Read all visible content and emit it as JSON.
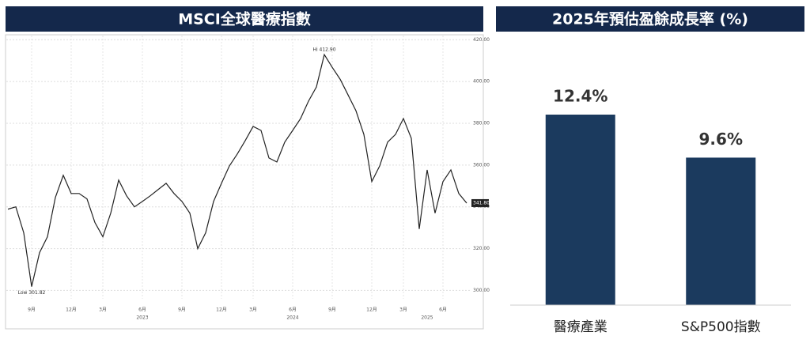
{
  "chart_data": [
    {
      "type": "line",
      "title": "MSCI全球醫療指數",
      "color": "#222222",
      "categories": [
        null,
        null,
        null,
        "9月",
        null,
        null,
        null,
        null,
        "12月",
        null,
        null,
        null,
        "3月",
        null,
        null,
        null,
        null,
        "6月",
        null,
        null,
        null,
        null,
        "9月",
        null,
        null,
        null,
        null,
        "12月",
        null,
        null,
        null,
        "3月",
        null,
        null,
        null,
        null,
        "6月",
        null,
        null,
        null,
        null,
        "9月",
        null,
        null,
        null,
        null,
        "12月",
        null,
        null,
        null,
        "3月",
        null,
        null,
        null,
        null,
        "6月",
        null,
        null,
        null
      ],
      "year_labels": [
        null,
        null,
        null,
        null,
        null,
        null,
        null,
        null,
        null,
        null,
        null,
        null,
        null,
        null,
        null,
        null,
        null,
        "2023",
        null,
        null,
        null,
        null,
        null,
        null,
        null,
        null,
        null,
        null,
        null,
        null,
        null,
        null,
        null,
        null,
        null,
        null,
        "2024",
        null,
        null,
        null,
        null,
        null,
        null,
        null,
        null,
        null,
        null,
        null,
        null,
        null,
        null,
        null,
        null,
        "2025",
        null,
        null,
        null,
        null,
        null
      ],
      "values": [
        338.9,
        340.0,
        327.6,
        301.82,
        318.1,
        325.7,
        344.5,
        355.1,
        346.4,
        346.4,
        343.8,
        332.5,
        325.7,
        337.0,
        352.8,
        345.3,
        340.0,
        342.6,
        345.3,
        348.3,
        351.3,
        346.4,
        342.6,
        337.0,
        320.0,
        327.6,
        342.6,
        351.3,
        359.6,
        365.3,
        371.7,
        378.5,
        376.6,
        363.4,
        361.5,
        371.0,
        376.6,
        382.3,
        390.6,
        397.4,
        412.9,
        406.8,
        401.1,
        393.6,
        386.0,
        374.7,
        352.1,
        359.6,
        371.0,
        374.7,
        382.3,
        372.8,
        329.4,
        357.7,
        337.0,
        352.1,
        357.7,
        346.4,
        341.8
      ],
      "high_label": "Hi 412.90",
      "low_label": "Low 301.82",
      "last_label": "341.80",
      "ylim": [
        296,
        422
      ],
      "yticks": [
        {
          "value": 300,
          "label": "300.00"
        },
        {
          "value": 320,
          "label": "320.00"
        },
        {
          "value": 340,
          "label": "340.00"
        },
        {
          "value": 360,
          "label": "360.00"
        },
        {
          "value": 380,
          "label": "380.00"
        },
        {
          "value": 400,
          "label": "400.00"
        },
        {
          "value": 420,
          "label": "420.00"
        }
      ],
      "grid": true
    },
    {
      "type": "bar",
      "title": "2025年預估盈餘成長率 (%)",
      "color": "#1b3a5e",
      "categories": [
        "醫療產業",
        "S&P500指數"
      ],
      "values": [
        12.4,
        9.6
      ],
      "value_labels": [
        "12.4%",
        "9.6%"
      ],
      "ylim": [
        0,
        12.4
      ]
    }
  ]
}
